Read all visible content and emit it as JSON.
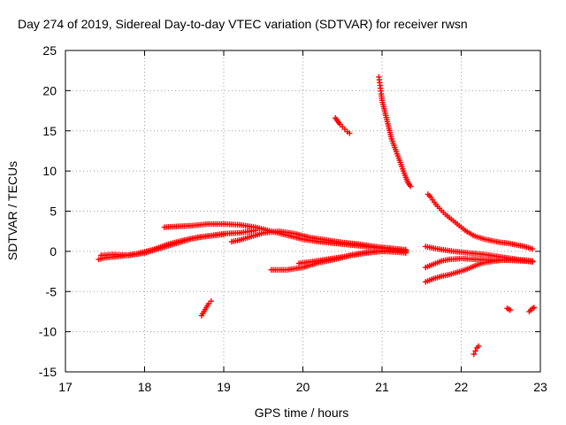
{
  "chart_data": {
    "type": "scatter",
    "title": "Day 274 of 2019, Sidereal Day-to-day VTEC variation (SDTVAR) for receiver rwsn",
    "xlabel": "GPS time / hours",
    "ylabel": "SDTVAR / TECUs",
    "xlim": [
      17,
      23
    ],
    "ylim": [
      -15,
      25
    ],
    "xticks": [
      17,
      18,
      19,
      20,
      21,
      22,
      23
    ],
    "yticks": [
      -15,
      -10,
      -5,
      0,
      5,
      10,
      15,
      20,
      25
    ],
    "grid": true,
    "marker": "+",
    "color": "#ff0000",
    "tracks": [
      {
        "name": "track-1",
        "points": [
          [
            17.42,
            -1.0
          ],
          [
            17.5,
            -0.8
          ],
          [
            17.7,
            -0.6
          ],
          [
            17.9,
            -0.3
          ],
          [
            18.1,
            0.2
          ],
          [
            18.3,
            0.9
          ],
          [
            18.5,
            1.4
          ],
          [
            18.7,
            1.8
          ],
          [
            18.9,
            2.0
          ],
          [
            19.0,
            2.1
          ]
        ]
      },
      {
        "name": "track-2",
        "points": [
          [
            17.45,
            -0.5
          ],
          [
            17.6,
            -0.4
          ],
          [
            17.8,
            -0.5
          ],
          [
            18.0,
            -0.2
          ],
          [
            18.2,
            0.4
          ],
          [
            18.4,
            1.0
          ],
          [
            18.6,
            1.6
          ],
          [
            18.8,
            1.9
          ],
          [
            19.0,
            2.2
          ],
          [
            19.2,
            2.3
          ],
          [
            19.4,
            2.6
          ]
        ]
      },
      {
        "name": "track-3",
        "points": [
          [
            18.25,
            3.0
          ],
          [
            18.4,
            3.1
          ],
          [
            18.6,
            3.2
          ],
          [
            18.8,
            3.4
          ],
          [
            19.0,
            3.4
          ],
          [
            19.2,
            3.3
          ],
          [
            19.4,
            3.0
          ],
          [
            19.6,
            2.5
          ],
          [
            19.8,
            2.0
          ],
          [
            20.0,
            1.5
          ],
          [
            20.2,
            1.2
          ],
          [
            20.4,
            1.0
          ],
          [
            20.6,
            0.8
          ],
          [
            20.8,
            0.6
          ],
          [
            21.0,
            0.4
          ],
          [
            21.2,
            0.2
          ],
          [
            21.3,
            0.1
          ]
        ]
      },
      {
        "name": "track-4",
        "points": [
          [
            19.1,
            1.2
          ],
          [
            19.2,
            1.4
          ],
          [
            19.3,
            1.7
          ],
          [
            19.4,
            2.0
          ],
          [
            19.5,
            2.3
          ],
          [
            19.7,
            2.5
          ],
          [
            19.9,
            2.2
          ],
          [
            20.1,
            1.7
          ],
          [
            20.3,
            1.4
          ],
          [
            20.5,
            1.1
          ],
          [
            20.7,
            0.9
          ],
          [
            20.9,
            0.6
          ],
          [
            21.1,
            0.4
          ],
          [
            21.3,
            0.2
          ]
        ]
      },
      {
        "name": "track-5",
        "points": [
          [
            19.6,
            -2.3
          ],
          [
            19.8,
            -2.3
          ],
          [
            20.0,
            -2.0
          ],
          [
            20.2,
            -1.4
          ],
          [
            20.4,
            -1.0
          ],
          [
            20.6,
            -0.5
          ],
          [
            20.8,
            -0.2
          ],
          [
            21.0,
            0.0
          ],
          [
            21.2,
            -0.1
          ],
          [
            21.3,
            -0.2
          ]
        ]
      },
      {
        "name": "track-6",
        "points": [
          [
            19.95,
            -1.5
          ],
          [
            20.1,
            -1.3
          ],
          [
            20.3,
            -1.0
          ],
          [
            20.5,
            -0.7
          ],
          [
            20.7,
            -0.3
          ],
          [
            20.9,
            0.0
          ],
          [
            21.1,
            0.1
          ],
          [
            21.3,
            0.0
          ]
        ]
      },
      {
        "name": "track-7",
        "points": [
          [
            18.72,
            -8.0
          ],
          [
            18.75,
            -7.5
          ],
          [
            18.78,
            -7.0
          ],
          [
            18.81,
            -6.5
          ],
          [
            18.84,
            -6.2
          ]
        ]
      },
      {
        "name": "track-8",
        "points": [
          [
            20.41,
            16.6
          ],
          [
            20.44,
            16.2
          ],
          [
            20.47,
            15.8
          ],
          [
            20.5,
            15.5
          ],
          [
            20.53,
            15.2
          ],
          [
            20.56,
            14.9
          ],
          [
            20.59,
            14.7
          ]
        ]
      },
      {
        "name": "track-9",
        "points": [
          [
            20.96,
            21.7
          ],
          [
            20.97,
            21.0
          ],
          [
            20.98,
            20.3
          ],
          [
            20.99,
            19.6
          ],
          [
            21.0,
            18.8
          ],
          [
            21.02,
            18.0
          ],
          [
            21.04,
            17.2
          ],
          [
            21.06,
            16.4
          ],
          [
            21.08,
            15.6
          ],
          [
            21.1,
            14.8
          ],
          [
            21.12,
            14.0
          ],
          [
            21.15,
            13.2
          ],
          [
            21.18,
            12.4
          ],
          [
            21.21,
            11.6
          ],
          [
            21.24,
            10.8
          ],
          [
            21.27,
            10.0
          ],
          [
            21.3,
            9.2
          ],
          [
            21.33,
            8.5
          ],
          [
            21.36,
            8.1
          ]
        ]
      },
      {
        "name": "track-10",
        "points": [
          [
            21.58,
            7.1
          ],
          [
            21.62,
            6.7
          ],
          [
            21.66,
            6.1
          ],
          [
            21.7,
            5.6
          ],
          [
            21.75,
            5.1
          ],
          [
            21.8,
            4.6
          ],
          [
            21.85,
            4.2
          ],
          [
            21.9,
            3.8
          ],
          [
            21.95,
            3.4
          ],
          [
            22.0,
            3.0
          ],
          [
            22.05,
            2.6
          ],
          [
            22.1,
            2.3
          ],
          [
            22.15,
            2.0
          ],
          [
            22.2,
            1.8
          ],
          [
            22.3,
            1.5
          ],
          [
            22.4,
            1.3
          ],
          [
            22.5,
            1.1
          ],
          [
            22.6,
            1.0
          ],
          [
            22.7,
            0.8
          ],
          [
            22.8,
            0.6
          ],
          [
            22.9,
            0.3
          ]
        ]
      },
      {
        "name": "track-11",
        "points": [
          [
            21.55,
            0.6
          ],
          [
            21.7,
            0.3
          ],
          [
            21.9,
            0.0
          ],
          [
            22.1,
            -0.2
          ],
          [
            22.3,
            -0.4
          ],
          [
            22.5,
            -0.7
          ],
          [
            22.7,
            -1.0
          ],
          [
            22.9,
            -1.3
          ]
        ]
      },
      {
        "name": "track-12",
        "points": [
          [
            21.55,
            -2.0
          ],
          [
            21.65,
            -1.6
          ],
          [
            21.75,
            -1.2
          ],
          [
            21.85,
            -1.0
          ],
          [
            22.0,
            -0.9
          ],
          [
            22.2,
            -1.0
          ],
          [
            22.4,
            -1.1
          ],
          [
            22.6,
            -1.1
          ],
          [
            22.8,
            -1.2
          ],
          [
            22.9,
            -1.3
          ]
        ]
      },
      {
        "name": "track-13",
        "points": [
          [
            21.55,
            -3.8
          ],
          [
            21.65,
            -3.4
          ],
          [
            21.75,
            -3.1
          ],
          [
            21.85,
            -2.9
          ],
          [
            21.95,
            -2.6
          ],
          [
            22.05,
            -2.3
          ],
          [
            22.15,
            -1.9
          ],
          [
            22.25,
            -1.5
          ],
          [
            22.35,
            -1.3
          ],
          [
            22.5,
            -1.1
          ],
          [
            22.65,
            -1.0
          ],
          [
            22.8,
            -1.1
          ],
          [
            22.9,
            -1.2
          ]
        ]
      },
      {
        "name": "track-14",
        "points": [
          [
            22.16,
            -12.8
          ],
          [
            22.18,
            -12.4
          ],
          [
            22.2,
            -12.0
          ],
          [
            22.22,
            -11.8
          ]
        ]
      },
      {
        "name": "track-15",
        "points": [
          [
            22.58,
            -7.1
          ],
          [
            22.6,
            -7.2
          ],
          [
            22.62,
            -7.3
          ]
        ]
      },
      {
        "name": "track-16",
        "points": [
          [
            22.86,
            -7.5
          ],
          [
            22.88,
            -7.3
          ],
          [
            22.9,
            -7.1
          ],
          [
            22.92,
            -7.0
          ]
        ]
      }
    ]
  }
}
